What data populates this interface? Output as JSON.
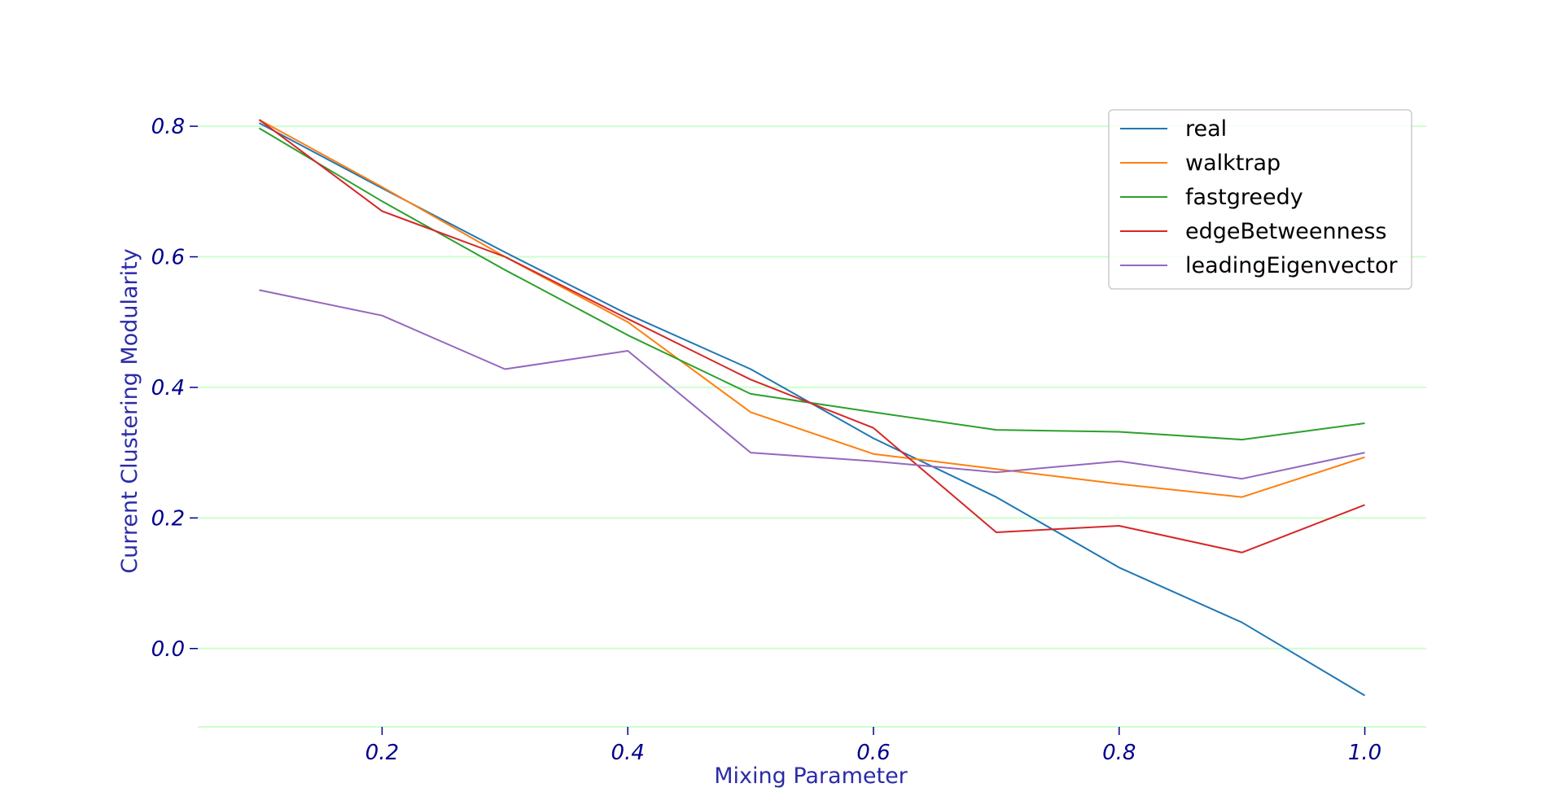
{
  "chart_data": {
    "type": "line",
    "xlabel": "Mixing Parameter",
    "ylabel": "Current Clustering Modularity",
    "x": [
      0.1,
      0.2,
      0.3,
      0.4,
      0.5,
      0.6,
      0.7,
      0.8,
      0.9,
      1.0
    ],
    "xlim": [
      0.05,
      1.05
    ],
    "ylim": [
      -0.12,
      0.85
    ],
    "xticks": [
      0.2,
      0.4,
      0.6,
      0.8,
      1.0
    ],
    "xtick_labels": [
      "0.2",
      "0.4",
      "0.6",
      "0.8",
      "1.0"
    ],
    "yticks": [
      0.0,
      0.2,
      0.4,
      0.6,
      0.8
    ],
    "ytick_labels": [
      "0.0",
      "0.2",
      "0.4",
      "0.6",
      "0.8"
    ],
    "grid": "horizontal",
    "grid_color": "#ccffcc",
    "tick_label_color": "#00008b",
    "axis_label_color": "#2b2ba8",
    "legend_position": "top-right",
    "series": [
      {
        "name": "real",
        "color": "#1f77b4",
        "values": [
          0.805,
          0.705,
          0.607,
          0.512,
          0.428,
          0.322,
          0.232,
          0.124,
          0.04,
          -0.072
        ]
      },
      {
        "name": "walktrap",
        "color": "#ff7f0e",
        "values": [
          0.81,
          0.707,
          0.6,
          0.5,
          0.362,
          0.298,
          0.275,
          0.252,
          0.232,
          0.293
        ]
      },
      {
        "name": "fastgreedy",
        "color": "#2ca02c",
        "values": [
          0.797,
          0.685,
          0.58,
          0.48,
          0.39,
          0.362,
          0.335,
          0.332,
          0.32,
          0.345
        ]
      },
      {
        "name": "edgeBetweenness",
        "color": "#d62728",
        "values": [
          0.81,
          0.67,
          0.6,
          0.505,
          0.412,
          0.338,
          0.178,
          0.188,
          0.147,
          0.22
        ]
      },
      {
        "name": "leadingEigenvector",
        "color": "#9467bd",
        "values": [
          0.549,
          0.51,
          0.428,
          0.456,
          0.3,
          0.287,
          0.27,
          0.287,
          0.26,
          0.3
        ]
      }
    ]
  }
}
